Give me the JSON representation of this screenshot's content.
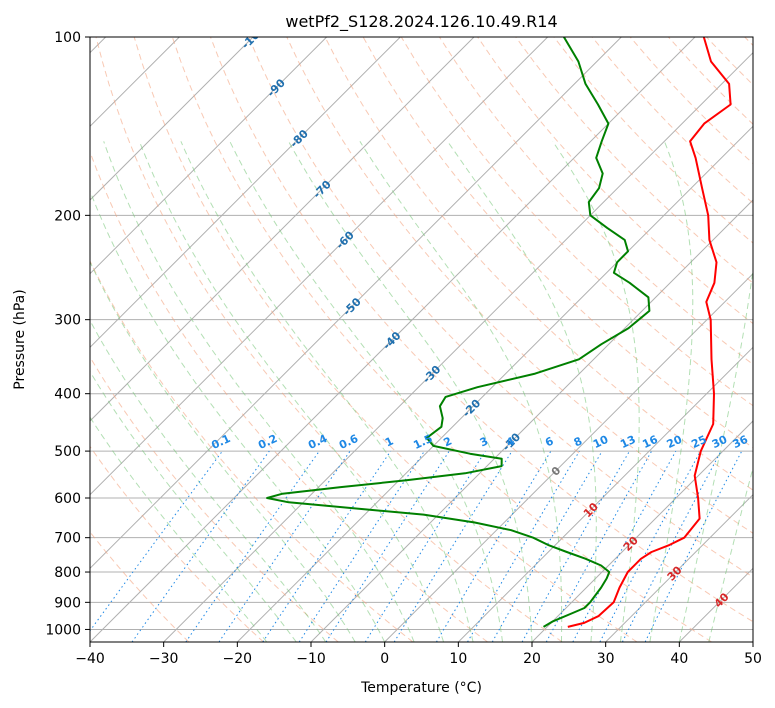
{
  "chart_data": {
    "type": "line",
    "title": "wetPf2_S128.2024.126.10.49.R14",
    "xlabel": "Temperature (°C)",
    "ylabel": "Pressure (hPa)",
    "xlim": [
      -40,
      50
    ],
    "ylim": [
      1050,
      100
    ],
    "y_scale": "log",
    "grid": true,
    "skew_t": true,
    "x_ticks": [
      "−40",
      "−30",
      "−20",
      "−10",
      "0",
      "10",
      "20",
      "30",
      "40",
      "50"
    ],
    "y_ticks": [
      "100",
      "200",
      "300",
      "400",
      "500",
      "600",
      "700",
      "800",
      "900",
      "1000"
    ],
    "isotherm_labels": [
      "-100",
      "-90",
      "-80",
      "-70",
      "-60",
      "-50",
      "-40",
      "-30",
      "-20",
      "-10",
      "0",
      "10",
      "20",
      "30",
      "40"
    ],
    "mixing_ratio_labels": [
      "0.1",
      "0.2",
      "0.4",
      "0.6",
      "1",
      "1.5",
      "2",
      "3",
      "4",
      "6",
      "8",
      "10",
      "13",
      "16",
      "20",
      "25",
      "30",
      "36"
    ],
    "colors": {
      "temperature": "#ff0000",
      "dewpoint": "#008000",
      "dry_adiabat": "#f4a582",
      "moist_adiabat": "#74c476",
      "mixing_ratio": "#1e88e5",
      "isotherm_label_cold": "#1f6fae",
      "isotherm_label_zero": "#777777",
      "isotherm_label_warm": "#d62728"
    },
    "series": [
      {
        "name": "Temperature",
        "points": [
          {
            "p": 990,
            "t": 22.8
          },
          {
            "p": 975,
            "t": 24.5
          },
          {
            "p": 950,
            "t": 25.5
          },
          {
            "p": 900,
            "t": 25.7
          },
          {
            "p": 850,
            "t": 24.5
          },
          {
            "p": 800,
            "t": 23.5
          },
          {
            "p": 760,
            "t": 23.5
          },
          {
            "p": 740,
            "t": 24.0
          },
          {
            "p": 720,
            "t": 25.5
          },
          {
            "p": 700,
            "t": 26.5
          },
          {
            "p": 650,
            "t": 26.0
          },
          {
            "p": 600,
            "t": 23.0
          },
          {
            "p": 550,
            "t": 19.5
          },
          {
            "p": 500,
            "t": 17.0
          },
          {
            "p": 450,
            "t": 15.0
          },
          {
            "p": 400,
            "t": 11.0
          },
          {
            "p": 350,
            "t": 6.0
          },
          {
            "p": 300,
            "t": 0.5
          },
          {
            "p": 280,
            "t": -2.5
          },
          {
            "p": 260,
            "t": -4.0
          },
          {
            "p": 240,
            "t": -6.5
          },
          {
            "p": 220,
            "t": -10.5
          },
          {
            "p": 200,
            "t": -14.0
          },
          {
            "p": 180,
            "t": -18.5
          },
          {
            "p": 160,
            "t": -23.5
          },
          {
            "p": 150,
            "t": -26.5
          },
          {
            "p": 140,
            "t": -27.0
          },
          {
            "p": 130,
            "t": -26.0
          },
          {
            "p": 120,
            "t": -29.0
          },
          {
            "p": 110,
            "t": -34.5
          },
          {
            "p": 100,
            "t": -38.8
          }
        ]
      },
      {
        "name": "Dewpoint",
        "points": [
          {
            "p": 990,
            "t": 19.5
          },
          {
            "p": 970,
            "t": 20.0
          },
          {
            "p": 940,
            "t": 21.5
          },
          {
            "p": 920,
            "t": 22.5
          },
          {
            "p": 900,
            "t": 22.5
          },
          {
            "p": 870,
            "t": 22.2
          },
          {
            "p": 850,
            "t": 22.0
          },
          {
            "p": 820,
            "t": 21.5
          },
          {
            "p": 800,
            "t": 21.0
          },
          {
            "p": 780,
            "t": 19.0
          },
          {
            "p": 760,
            "t": 16.0
          },
          {
            "p": 740,
            "t": 12.5
          },
          {
            "p": 720,
            "t": 9.0
          },
          {
            "p": 700,
            "t": 6.0
          },
          {
            "p": 680,
            "t": 2.0
          },
          {
            "p": 660,
            "t": -4.0
          },
          {
            "p": 640,
            "t": -12.0
          },
          {
            "p": 625,
            "t": -22.0
          },
          {
            "p": 610,
            "t": -32.0
          },
          {
            "p": 600,
            "t": -35.5
          },
          {
            "p": 590,
            "t": -34.0
          },
          {
            "p": 575,
            "t": -27.0
          },
          {
            "p": 560,
            "t": -19.0
          },
          {
            "p": 545,
            "t": -12.0
          },
          {
            "p": 530,
            "t": -8.0
          },
          {
            "p": 515,
            "t": -9.0
          },
          {
            "p": 505,
            "t": -14.0
          },
          {
            "p": 490,
            "t": -20.0
          },
          {
            "p": 475,
            "t": -22.0
          },
          {
            "p": 455,
            "t": -21.5
          },
          {
            "p": 440,
            "t": -22.5
          },
          {
            "p": 420,
            "t": -24.5
          },
          {
            "p": 405,
            "t": -25.0
          },
          {
            "p": 390,
            "t": -22.0
          },
          {
            "p": 370,
            "t": -16.0
          },
          {
            "p": 350,
            "t": -12.0
          },
          {
            "p": 330,
            "t": -11.0
          },
          {
            "p": 310,
            "t": -9.5
          },
          {
            "p": 290,
            "t": -9.0
          },
          {
            "p": 275,
            "t": -11.0
          },
          {
            "p": 260,
            "t": -15.5
          },
          {
            "p": 250,
            "t": -19.0
          },
          {
            "p": 240,
            "t": -20.0
          },
          {
            "p": 230,
            "t": -20.0
          },
          {
            "p": 220,
            "t": -22.0
          },
          {
            "p": 210,
            "t": -26.0
          },
          {
            "p": 200,
            "t": -30.0
          },
          {
            "p": 190,
            "t": -32.0
          },
          {
            "p": 180,
            "t": -32.5
          },
          {
            "p": 170,
            "t": -34.0
          },
          {
            "p": 160,
            "t": -37.0
          },
          {
            "p": 150,
            "t": -38.5
          },
          {
            "p": 140,
            "t": -40.0
          },
          {
            "p": 130,
            "t": -44.0
          },
          {
            "p": 120,
            "t": -48.5
          },
          {
            "p": 110,
            "t": -52.5
          },
          {
            "p": 100,
            "t": -57.8
          }
        ]
      }
    ]
  }
}
